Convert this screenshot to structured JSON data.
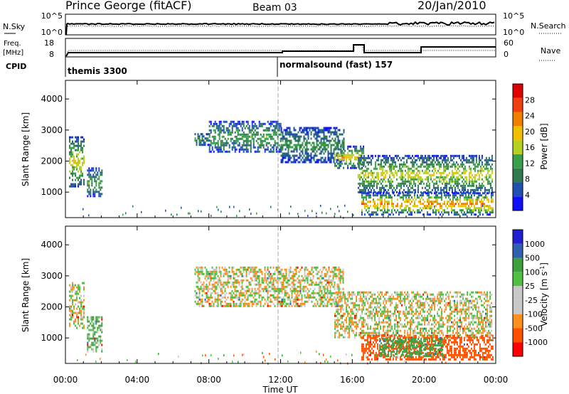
{
  "header": {
    "title": "Prince George (fitACF)",
    "beam": "Beam 03",
    "date": "20/Jan/2010"
  },
  "top_panel": {
    "left_label": "N.Sky",
    "left_ticks": [
      "10^5",
      "10^0"
    ],
    "right_ticks": [
      "10^5",
      "10^0"
    ],
    "right_label": "N.Search"
  },
  "freq_panel": {
    "left_label_1": "Freq.",
    "left_label_2": "[MHz]",
    "left_ticks": [
      "18",
      "8"
    ],
    "right_ticks": [
      "60",
      "0"
    ],
    "right_label": "Nave"
  },
  "cpid_panel": {
    "label": "CPID",
    "modes": [
      "themis 3300",
      "normalsound (fast) 157"
    ]
  },
  "colors": {
    "power_scale": [
      "#1010ff",
      "#2050b0",
      "#307a50",
      "#38a048",
      "#b4d020",
      "#f0c000",
      "#f08000",
      "#f04010",
      "#e00000"
    ],
    "velocity_scale": [
      "#ff0000",
      "#ff5000",
      "#ff9020",
      "#c8c8c8",
      "#c8c8c8",
      "#50c040",
      "#40a040",
      "#3060b0",
      "#2020d0"
    ],
    "gray": "#c8c8c8"
  },
  "chart_data": [
    {
      "type": "heatmap",
      "name": "power",
      "xlabel": "",
      "ylabel": "Slant Range [km]",
      "y_ticks": [
        "1000",
        "2000",
        "3000",
        "4000"
      ],
      "ylim": [
        180,
        4600
      ],
      "colorbar_label": "Power [dB]",
      "colorbar_ticks": [
        "28",
        "24",
        "20",
        "16",
        "12",
        "8",
        "4"
      ],
      "clim": [
        0,
        32
      ],
      "regions": [
        {
          "x0": 0.2,
          "x1": 1.0,
          "y0": 1200,
          "y1": 2800,
          "value": 18
        },
        {
          "x0": 1.2,
          "x1": 2.0,
          "y0": 900,
          "y1": 1800,
          "value": 12
        },
        {
          "x0": 7.2,
          "x1": 8.0,
          "y0": 2500,
          "y1": 2900,
          "value": 10
        },
        {
          "x0": 8.0,
          "x1": 12.0,
          "y0": 2300,
          "y1": 3300,
          "value": 12
        },
        {
          "x0": 12.0,
          "x1": 15.5,
          "y0": 2000,
          "y1": 3100,
          "value": 11
        },
        {
          "x0": 15.0,
          "x1": 16.6,
          "y0": 1800,
          "y1": 2500,
          "value": 20
        },
        {
          "x0": 16.3,
          "x1": 23.8,
          "y0": 1000,
          "y1": 2200,
          "value": 18
        },
        {
          "x0": 16.5,
          "x1": 23.8,
          "y0": 300,
          "y1": 1000,
          "value": 24
        }
      ]
    },
    {
      "type": "heatmap",
      "name": "velocity",
      "xlabel": "Time UT",
      "x_ticks": [
        "00:00",
        "04:00",
        "08:00",
        "12:00",
        "16:00",
        "20:00",
        "00:00"
      ],
      "ylabel": "Slant Range [km]",
      "y_ticks": [
        "1000",
        "2000",
        "3000",
        "4000"
      ],
      "ylim": [
        180,
        4600
      ],
      "colorbar_label": "Velocity [m s^-1]",
      "colorbar_ticks": [
        "1000",
        "500",
        "100",
        "25",
        "-25",
        "-100",
        "-500",
        "-1000"
      ],
      "regions": [
        {
          "x0": 0.2,
          "x1": 1.0,
          "y0": 1300,
          "y1": 2800,
          "value": 0
        },
        {
          "x0": 1.2,
          "x1": 2.0,
          "y0": 600,
          "y1": 1700,
          "value": 80
        },
        {
          "x0": 7.2,
          "x1": 15.5,
          "y0": 2000,
          "y1": 3300,
          "value": 0
        },
        {
          "x0": 15.0,
          "x1": 23.8,
          "y0": 1000,
          "y1": 2500,
          "value": 0
        },
        {
          "x0": 16.5,
          "x1": 23.8,
          "y0": 300,
          "y1": 1100,
          "value": -200
        },
        {
          "x0": 17.5,
          "x1": 21.0,
          "y0": 400,
          "y1": 1000,
          "value": 200
        }
      ]
    }
  ]
}
